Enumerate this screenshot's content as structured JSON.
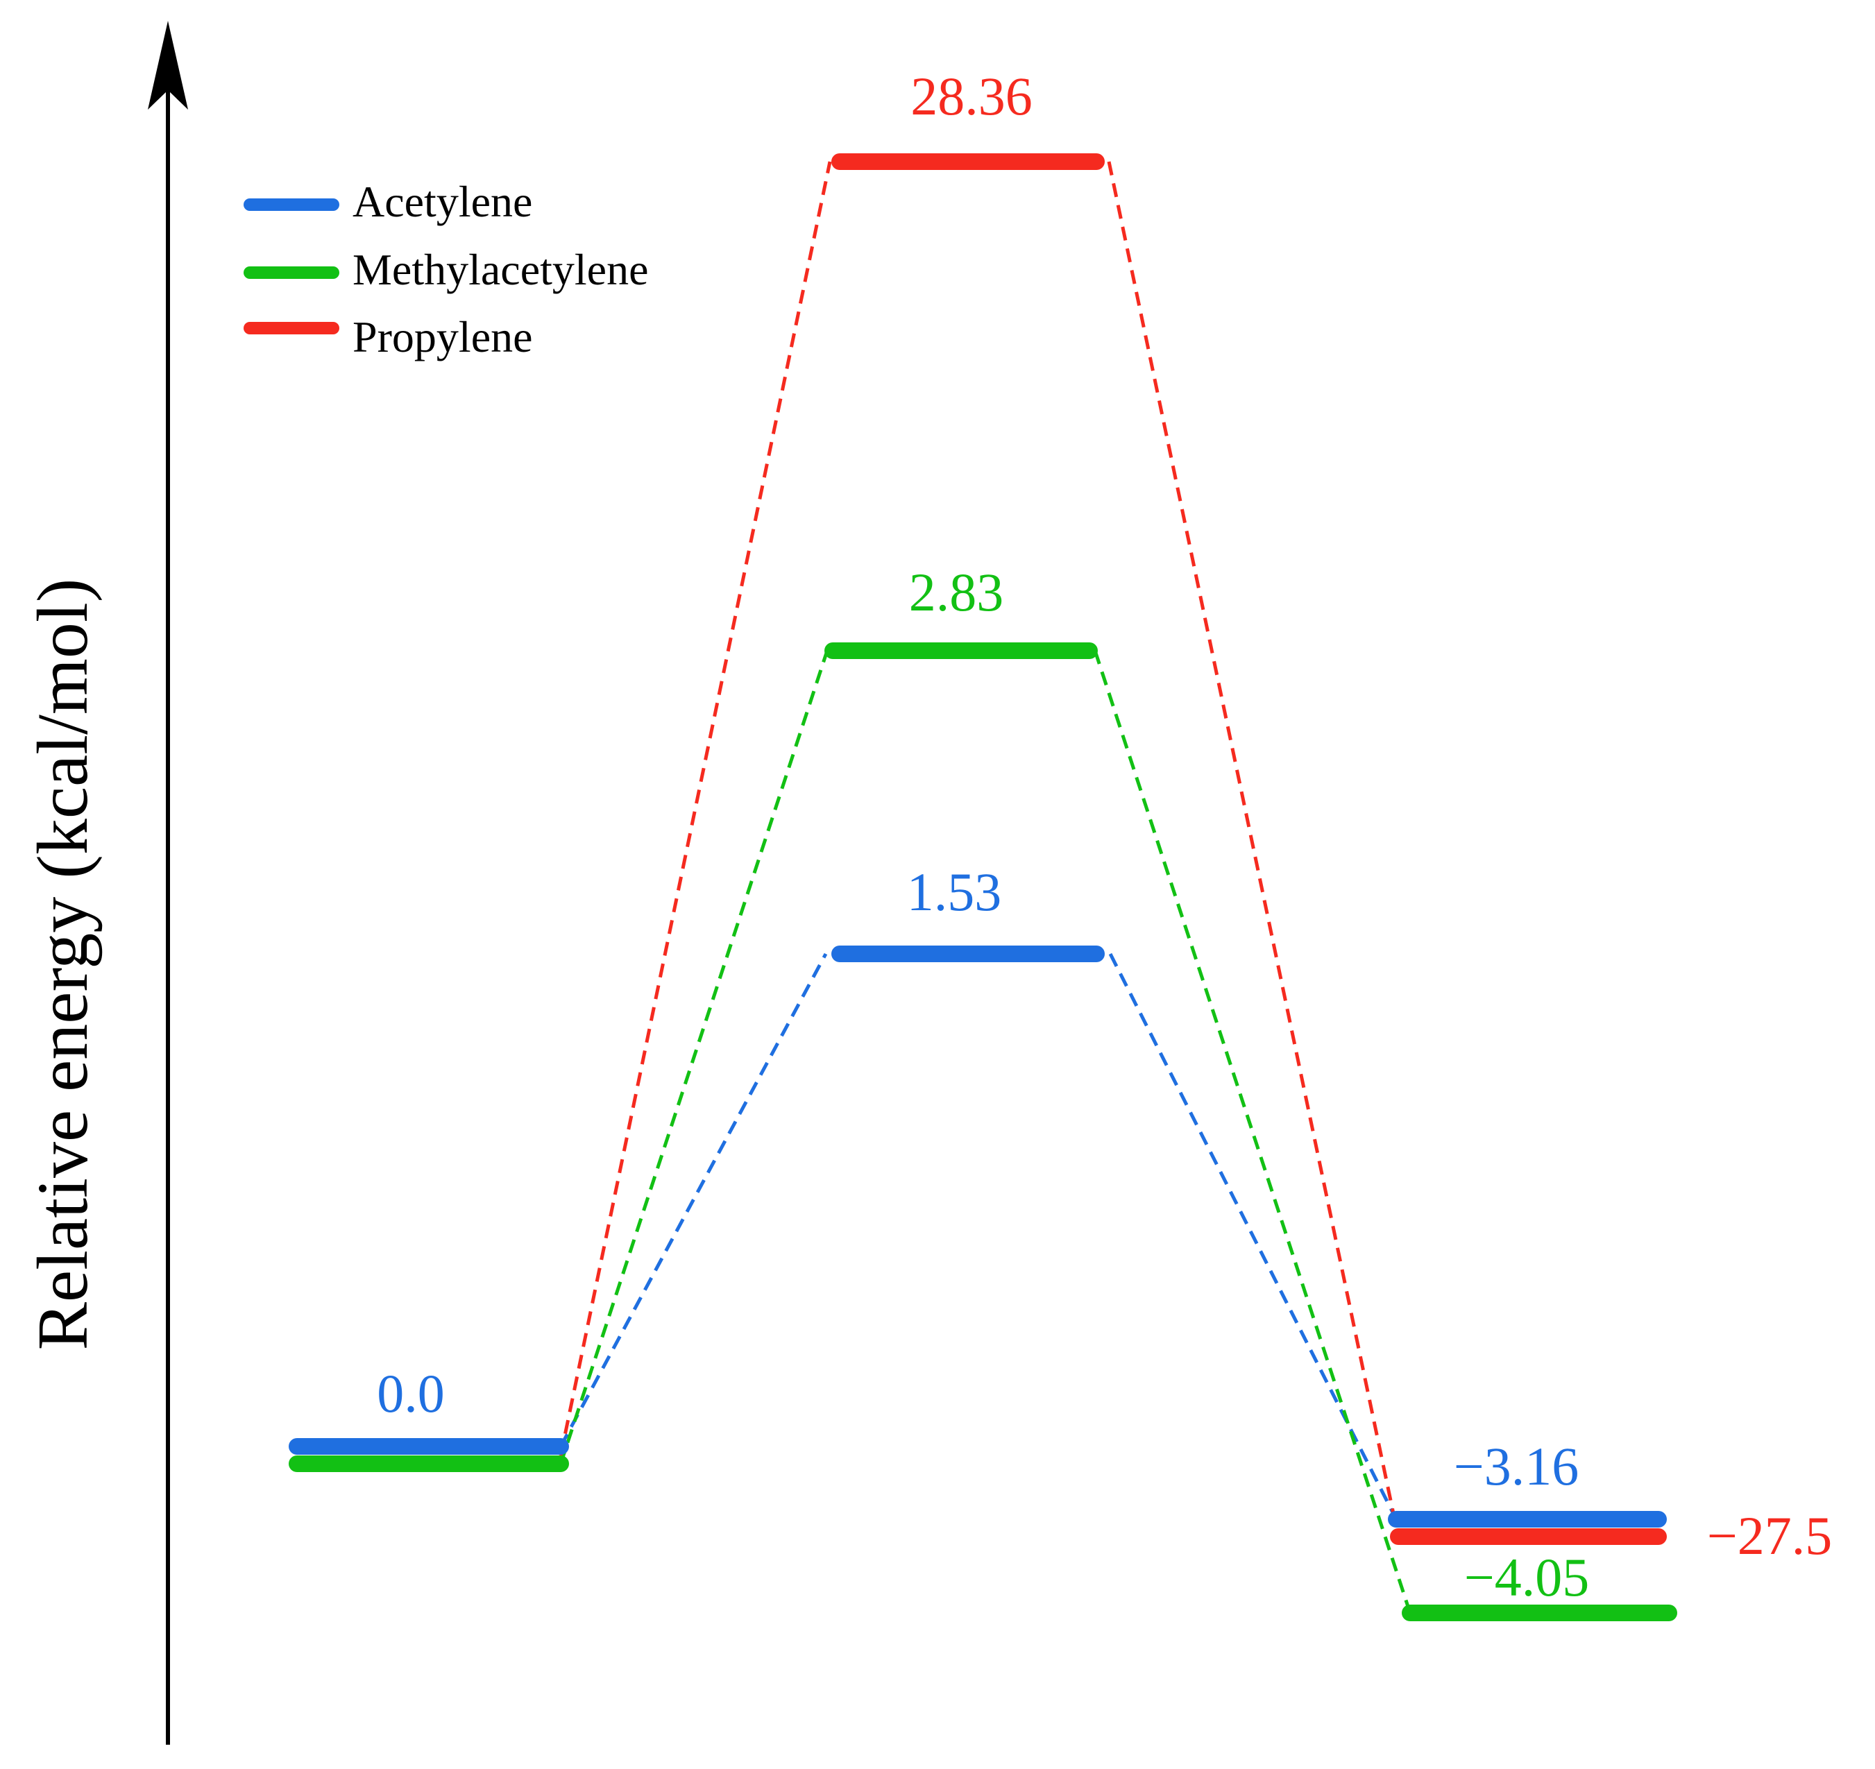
{
  "chart_data": {
    "type": "line",
    "ylabel": "Relative energy (kcal/mol)",
    "xlabel": "",
    "title": "",
    "legend_position": "top-left",
    "grid": false,
    "series": [
      {
        "name": "Acetylene",
        "color": "#1F6FE0",
        "levels": [
          0.0,
          1.53,
          -3.16
        ],
        "labels": [
          "0.0",
          "1.53",
          "−3.16"
        ]
      },
      {
        "name": "Methylacetylene",
        "color": "#12C014",
        "levels": [
          0.0,
          2.83,
          -4.05
        ],
        "labels": [
          "",
          "2.83",
          "−4.05"
        ]
      },
      {
        "name": "Propylene",
        "color": "#F52A1F",
        "levels": [
          0.0,
          28.36,
          -27.5
        ],
        "labels": [
          "",
          "28.36",
          "−27.5"
        ]
      }
    ]
  }
}
